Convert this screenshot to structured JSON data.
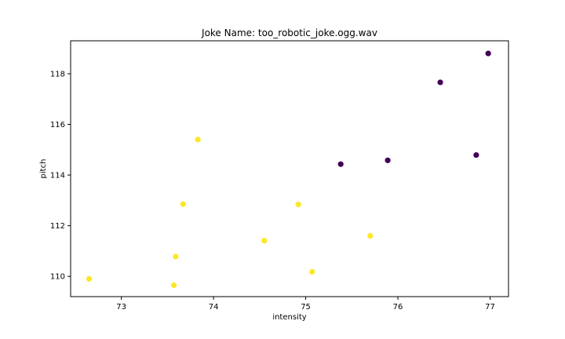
{
  "chart_data": {
    "type": "scatter",
    "title": "Joke Name: too_robotic_joke.ogg.wav",
    "xlabel": "intensity",
    "ylabel": "pitch",
    "xlim": [
      72.45,
      77.2
    ],
    "ylim": [
      109.2,
      119.3
    ],
    "xticks": [
      73,
      74,
      75,
      76,
      77
    ],
    "yticks": [
      110,
      112,
      114,
      116,
      118
    ],
    "grid": false,
    "colors": {
      "cluster_a": "#440154",
      "cluster_b": "#fde725"
    },
    "series": [
      {
        "color_key": "cluster_a",
        "points": [
          {
            "x": 75.38,
            "y": 114.43
          },
          {
            "x": 75.89,
            "y": 114.58
          },
          {
            "x": 76.46,
            "y": 117.66
          },
          {
            "x": 76.85,
            "y": 114.79
          },
          {
            "x": 76.98,
            "y": 118.8
          }
        ]
      },
      {
        "color_key": "cluster_b",
        "points": [
          {
            "x": 72.65,
            "y": 109.9
          },
          {
            "x": 73.57,
            "y": 109.65
          },
          {
            "x": 73.59,
            "y": 110.78
          },
          {
            "x": 73.67,
            "y": 112.85
          },
          {
            "x": 73.83,
            "y": 115.4
          },
          {
            "x": 74.55,
            "y": 111.41
          },
          {
            "x": 74.92,
            "y": 112.84
          },
          {
            "x": 75.07,
            "y": 110.18
          },
          {
            "x": 75.7,
            "y": 111.6
          }
        ]
      }
    ]
  }
}
